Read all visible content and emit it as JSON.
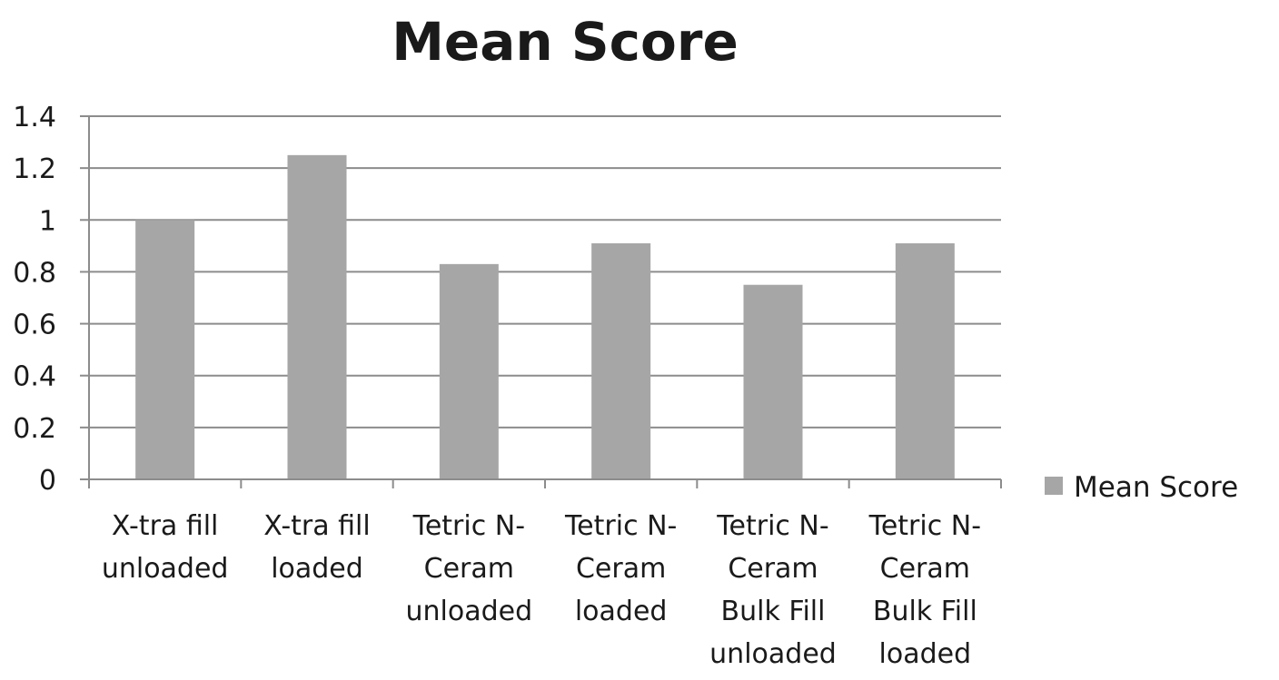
{
  "chart_data": {
    "type": "bar",
    "title": "Mean Score",
    "categories": [
      [
        "X-tra fill",
        "unloaded"
      ],
      [
        "X-tra fill",
        "loaded"
      ],
      [
        "Tetric N-",
        "Ceram",
        "unloaded"
      ],
      [
        "Tetric N-",
        "Ceram",
        "loaded"
      ],
      [
        "Tetric N-",
        "Ceram",
        "Bulk Fill",
        "unloaded"
      ],
      [
        "Tetric N-",
        "Ceram",
        "Bulk Fill",
        "loaded"
      ]
    ],
    "series": [
      {
        "name": "Mean Score",
        "values": [
          1.0,
          1.25,
          0.83,
          0.91,
          0.75,
          0.91
        ],
        "color": "#a6a6a6"
      }
    ],
    "ylim": [
      0,
      1.4
    ],
    "yticks": [
      "0",
      "0.2",
      "0.4",
      "0.6",
      "0.8",
      "1",
      "1.2",
      "1.4"
    ],
    "ytick_values": [
      0,
      0.2,
      0.4,
      0.6,
      0.8,
      1.0,
      1.2,
      1.4
    ],
    "grid": true,
    "legend": "right",
    "gridline_color": "#8c8c8c",
    "axis_color": "#8c8c8c"
  }
}
